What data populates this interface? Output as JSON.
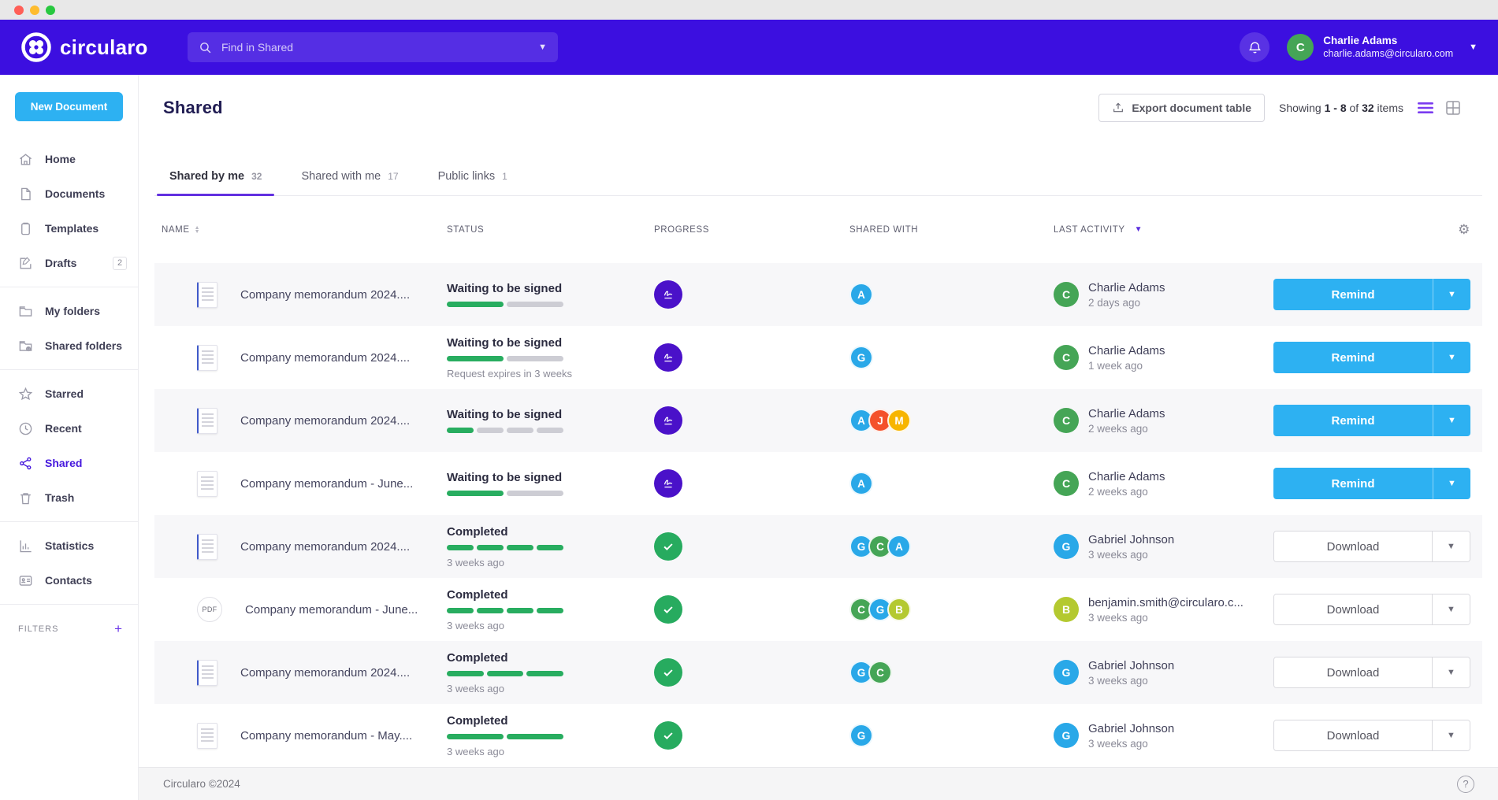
{
  "colors": {
    "header_purple": "#3c0fe0",
    "accent_purple": "#6230e0",
    "primary_blue": "#2db1f2",
    "success_green": "#27ab5f",
    "progress_green": "#28ad60",
    "avatar_palette": {
      "blue": "#29a8e8",
      "green": "#45a556",
      "red": "#f4512b",
      "amber": "#f7b500",
      "lime": "#b4c930"
    }
  },
  "header": {
    "brand": "circularo",
    "search": {
      "placeholder": "Find in Shared"
    },
    "user": {
      "name": "Charlie Adams",
      "email": "charlie.adams@circularo.com",
      "initial": "C",
      "color": "green"
    }
  },
  "sidebar": {
    "new_document_label": "New Document",
    "groups": [
      {
        "items": [
          {
            "label": "Home"
          },
          {
            "label": "Documents"
          },
          {
            "label": "Templates"
          },
          {
            "label": "Drafts",
            "badge": "2"
          }
        ]
      },
      {
        "items": [
          {
            "label": "My folders"
          },
          {
            "label": "Shared folders"
          }
        ]
      },
      {
        "items": [
          {
            "label": "Starred"
          },
          {
            "label": "Recent"
          },
          {
            "label": "Shared",
            "active": true
          },
          {
            "label": "Trash"
          }
        ]
      },
      {
        "items": [
          {
            "label": "Statistics"
          },
          {
            "label": "Contacts"
          }
        ]
      }
    ],
    "filters_label": "FILTERS",
    "filters_add": "+"
  },
  "main": {
    "title": "Shared",
    "export_button": "Export document table",
    "showing": {
      "prefix": "Showing",
      "range": "1 - 8",
      "mid": "of",
      "total": "32",
      "suffix": "items"
    },
    "tabs": [
      {
        "label": "Shared by me",
        "count": "32",
        "active": true
      },
      {
        "label": "Shared with me",
        "count": "17"
      },
      {
        "label": "Public links",
        "count": "1"
      }
    ],
    "table": {
      "columns": {
        "name": "NAME",
        "status": "STATUS",
        "progress": "PROGRESS",
        "shared": "SHARED WITH",
        "activity": "LAST ACTIVITY"
      },
      "rows": [
        {
          "thumb": "doc-blue",
          "name": "Company memorandum 2024....",
          "status": "Waiting to be signed",
          "sub": "",
          "progress": {
            "total": 2,
            "filled": 1
          },
          "state": "waiting",
          "shared": [
            {
              "initial": "A",
              "color": "blue"
            }
          ],
          "activity": {
            "initial": "C",
            "color": "green",
            "name": "Charlie Adams",
            "time": "2 days ago"
          },
          "action": {
            "label": "Remind",
            "variant": "primary"
          }
        },
        {
          "thumb": "doc-blue",
          "name": "Company memorandum 2024....",
          "status": "Waiting to be signed",
          "sub": "Request expires in 3 weeks",
          "progress": {
            "total": 2,
            "filled": 1
          },
          "state": "waiting",
          "shared": [
            {
              "initial": "G",
              "color": "blue"
            }
          ],
          "activity": {
            "initial": "C",
            "color": "green",
            "name": "Charlie Adams",
            "time": "1 week ago"
          },
          "action": {
            "label": "Remind",
            "variant": "primary"
          }
        },
        {
          "thumb": "doc-blue",
          "name": "Company memorandum 2024....",
          "status": "Waiting to be signed",
          "sub": "",
          "progress": {
            "total": 4,
            "filled": 1
          },
          "state": "waiting",
          "shared": [
            {
              "initial": "A",
              "color": "blue"
            },
            {
              "initial": "J",
              "color": "red"
            },
            {
              "initial": "M",
              "color": "amber"
            }
          ],
          "activity": {
            "initial": "C",
            "color": "green",
            "name": "Charlie Adams",
            "time": "2 weeks ago"
          },
          "action": {
            "label": "Remind",
            "variant": "primary"
          }
        },
        {
          "thumb": "doc-plain",
          "name": "Company memorandum - June...",
          "status": "Waiting to be signed",
          "sub": "",
          "progress": {
            "total": 2,
            "filled": 1
          },
          "state": "waiting",
          "shared": [
            {
              "initial": "A",
              "color": "blue"
            }
          ],
          "activity": {
            "initial": "C",
            "color": "green",
            "name": "Charlie Adams",
            "time": "2 weeks ago"
          },
          "action": {
            "label": "Remind",
            "variant": "primary"
          }
        },
        {
          "thumb": "doc-blue",
          "name": "Company memorandum 2024....",
          "status": "Completed",
          "sub": "3 weeks ago",
          "progress": {
            "total": 4,
            "filled": 4
          },
          "state": "completed",
          "shared": [
            {
              "initial": "G",
              "color": "blue"
            },
            {
              "initial": "C",
              "color": "green"
            },
            {
              "initial": "A",
              "color": "blue"
            }
          ],
          "activity": {
            "initial": "G",
            "color": "blue",
            "name": "Gabriel Johnson",
            "time": "3 weeks ago"
          },
          "action": {
            "label": "Download",
            "variant": "secondary"
          }
        },
        {
          "thumb": "pdf",
          "name": "Company memorandum - June...",
          "status": "Completed",
          "sub": "3 weeks ago",
          "progress": {
            "total": 4,
            "filled": 4
          },
          "state": "completed",
          "shared": [
            {
              "initial": "C",
              "color": "green"
            },
            {
              "initial": "G",
              "color": "blue"
            },
            {
              "initial": "B",
              "color": "lime"
            }
          ],
          "activity": {
            "initial": "B",
            "color": "lime",
            "name": "benjamin.smith@circularo.c...",
            "time": "3 weeks ago"
          },
          "action": {
            "label": "Download",
            "variant": "secondary"
          }
        },
        {
          "thumb": "doc-blue",
          "name": "Company memorandum 2024....",
          "status": "Completed",
          "sub": "3 weeks ago",
          "progress": {
            "total": 3,
            "filled": 3
          },
          "state": "completed",
          "shared": [
            {
              "initial": "G",
              "color": "blue"
            },
            {
              "initial": "C",
              "color": "green"
            }
          ],
          "activity": {
            "initial": "G",
            "color": "blue",
            "name": "Gabriel Johnson",
            "time": "3 weeks ago"
          },
          "action": {
            "label": "Download",
            "variant": "secondary"
          }
        },
        {
          "thumb": "doc-plain",
          "name": "Company memorandum - May....",
          "status": "Completed",
          "sub": "3 weeks ago",
          "progress": {
            "total": 2,
            "filled": 2
          },
          "state": "completed",
          "shared": [
            {
              "initial": "G",
              "color": "blue"
            }
          ],
          "activity": {
            "initial": "G",
            "color": "blue",
            "name": "Gabriel Johnson",
            "time": "3 weeks ago"
          },
          "action": {
            "label": "Download",
            "variant": "secondary"
          }
        }
      ]
    }
  },
  "footer": {
    "copyright": "Circularo ©2024",
    "help": "?"
  }
}
